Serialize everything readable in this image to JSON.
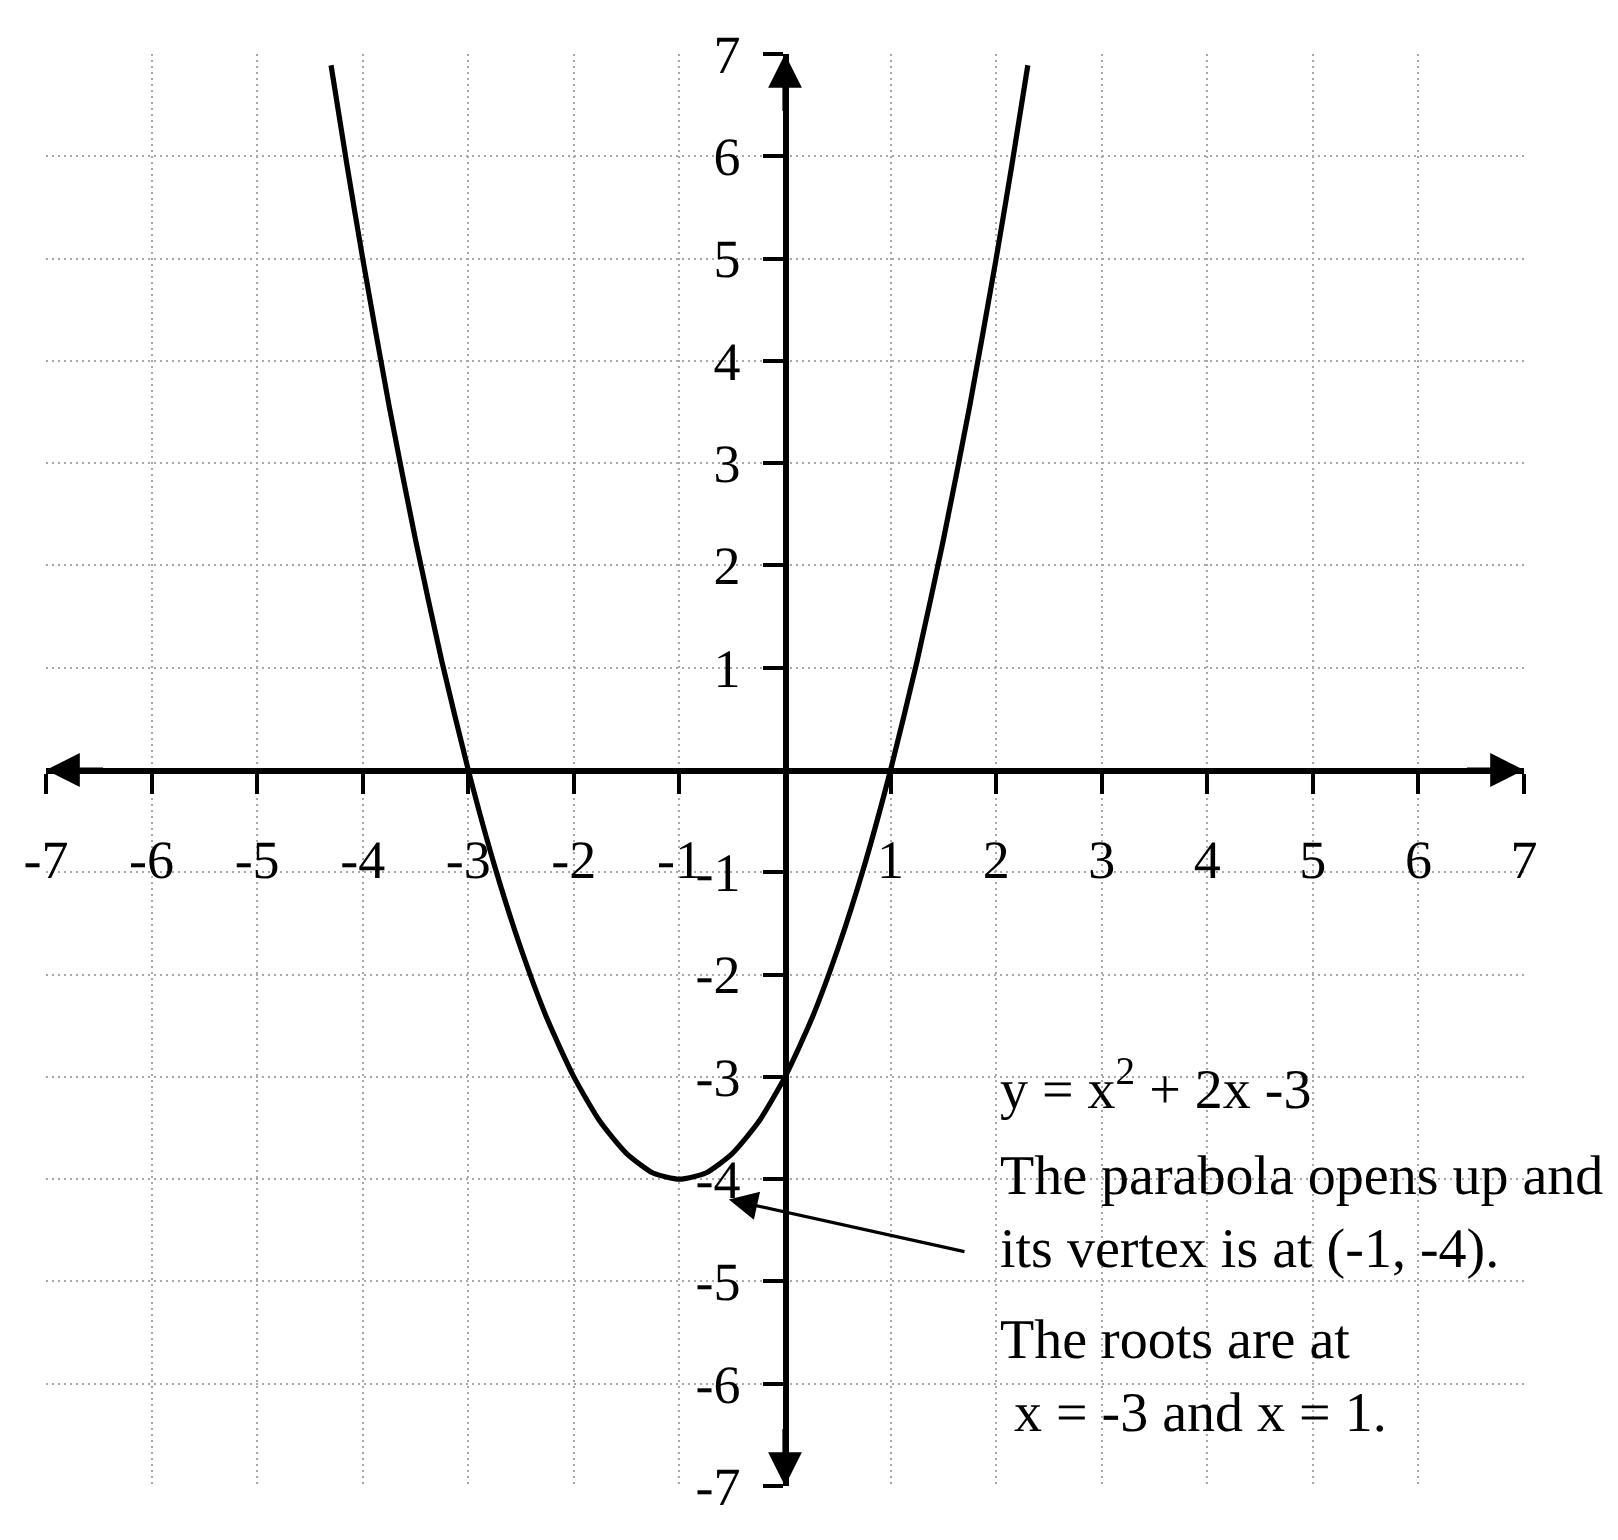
{
  "chart_data": {
    "type": "line",
    "x": [
      -4.3,
      -4.15,
      -4,
      -3.75,
      -3.5,
      -3.25,
      -3,
      -2.75,
      -2.5,
      -2.25,
      -2,
      -1.75,
      -1.5,
      -1.25,
      -1,
      -0.75,
      -0.5,
      -0.25,
      0,
      0.25,
      0.5,
      0.75,
      1,
      1.25,
      1.5,
      1.75,
      2,
      2.15,
      2.3
    ],
    "series": [
      {
        "color": "#000000",
        "values": [
          6.89,
          5.92,
          5,
          3.56,
          2.25,
          1.06,
          0,
          -0.94,
          -1.75,
          -2.44,
          -3,
          -3.44,
          -3.75,
          -3.94,
          -4,
          -3.94,
          -3.75,
          -3.44,
          -3,
          -2.44,
          -1.75,
          -0.94,
          0,
          1.06,
          2.25,
          3.56,
          5,
          5.92,
          6.89
        ]
      }
    ],
    "xlim": [
      -7,
      7
    ],
    "ylim": [
      -7,
      7
    ],
    "xticks": [
      -7,
      -6,
      -5,
      -4,
      -3,
      -2,
      -1,
      1,
      2,
      3,
      4,
      5,
      6,
      7
    ],
    "yticks": [
      -7,
      -6,
      -5,
      -4,
      -3,
      -2,
      -1,
      1,
      2,
      3,
      4,
      5,
      6,
      7
    ],
    "grid": true,
    "line_style": "solid",
    "annotations": [
      "y = x$^{2}$ + 2x -3",
      "The parabola opens up and\nits vertex is at (-1, -4).",
      "The roots are at\n x = -3 and x = 1."
    ]
  }
}
